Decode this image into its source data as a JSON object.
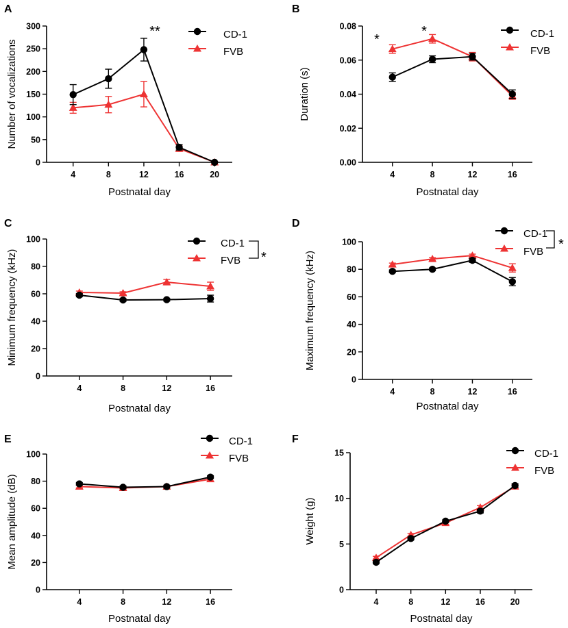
{
  "colors": {
    "cd1": "#000000",
    "fvb": "#ee3333"
  },
  "chart_data": [
    {
      "panel": "A",
      "type": "line",
      "xlabel": "Postnatal day",
      "ylabel": "Number of vocalizations",
      "x": [
        4,
        8,
        12,
        16,
        20
      ],
      "xlim": [
        1,
        22
      ],
      "ylim": [
        0,
        300
      ],
      "yticks": [
        0,
        50,
        100,
        150,
        200,
        250,
        300
      ],
      "ytick_labels": [
        "0",
        "50",
        "100",
        "150",
        "200",
        "250",
        "300"
      ],
      "series": [
        {
          "name": "CD-1",
          "values": [
            149,
            184,
            248,
            33,
            0
          ],
          "errors": [
            22,
            21,
            25,
            6,
            1
          ]
        },
        {
          "name": "FVB",
          "values": [
            120,
            127,
            150,
            30,
            0
          ],
          "errors": [
            12,
            18,
            28,
            6,
            1
          ]
        }
      ],
      "annotations": [
        {
          "text": "**",
          "x": 12
        }
      ]
    },
    {
      "panel": "B",
      "type": "line",
      "xlabel": "Postnatal day",
      "ylabel": "Duration (s)",
      "x": [
        4,
        8,
        12,
        16
      ],
      "xlim": [
        1,
        18
      ],
      "ylim": [
        0,
        0.08
      ],
      "yticks": [
        0,
        0.02,
        0.04,
        0.06,
        0.08
      ],
      "ytick_labels": [
        "0.00",
        "0.02",
        "0.04",
        "0.06",
        "0.08"
      ],
      "series": [
        {
          "name": "CD-1",
          "values": [
            0.05,
            0.0605,
            0.062,
            0.04
          ],
          "errors": [
            0.0025,
            0.002,
            0.002,
            0.0025
          ]
        },
        {
          "name": "FVB",
          "values": [
            0.0665,
            0.0725,
            0.062,
            0.039
          ],
          "errors": [
            0.0025,
            0.0025,
            0.0025,
            0.002
          ]
        }
      ],
      "annotations": [
        {
          "text": "*",
          "x": 4
        },
        {
          "text": "*",
          "x": 8
        }
      ]
    },
    {
      "panel": "C",
      "type": "line",
      "xlabel": "Postnatal day",
      "ylabel": "Minimum frequency (kHz)",
      "x": [
        4,
        8,
        12,
        16
      ],
      "xlim": [
        1,
        18
      ],
      "ylim": [
        0,
        100
      ],
      "yticks": [
        0,
        20,
        40,
        60,
        80,
        100
      ],
      "ytick_labels": [
        "0",
        "20",
        "40",
        "60",
        "80",
        "100"
      ],
      "series": [
        {
          "name": "CD-1",
          "values": [
            59,
            55.5,
            55.7,
            56.5
          ],
          "errors": [
            1.2,
            1,
            1,
            2.5
          ]
        },
        {
          "name": "FVB",
          "values": [
            61,
            60.5,
            68.5,
            65.5
          ],
          "errors": [
            1,
            1,
            2,
            3
          ]
        }
      ],
      "annotations": [
        {
          "text": "*",
          "x": null
        }
      ]
    },
    {
      "panel": "D",
      "type": "line",
      "xlabel": "Postnatal day",
      "ylabel": "Maximum frequency (kHz)",
      "x": [
        4,
        8,
        12,
        16
      ],
      "xlim": [
        1,
        18
      ],
      "ylim": [
        0,
        100
      ],
      "yticks": [
        0,
        20,
        40,
        60,
        80,
        100
      ],
      "ytick_labels": [
        "0",
        "20",
        "40",
        "60",
        "80",
        "100"
      ],
      "series": [
        {
          "name": "CD-1",
          "values": [
            78.5,
            80,
            86.5,
            71
          ],
          "errors": [
            1,
            1,
            1.5,
            3
          ]
        },
        {
          "name": "FVB",
          "values": [
            83.5,
            87.5,
            90,
            81
          ],
          "errors": [
            1,
            1,
            1,
            3
          ]
        }
      ],
      "annotations": [
        {
          "text": "*",
          "x": null
        }
      ]
    },
    {
      "panel": "E",
      "type": "line",
      "xlabel": "Postnatal day",
      "ylabel": "Mean amplitude (dB)",
      "x": [
        4,
        8,
        12,
        16
      ],
      "xlim": [
        1,
        18
      ],
      "ylim": [
        0,
        100
      ],
      "yticks": [
        0,
        20,
        40,
        60,
        80,
        100
      ],
      "ytick_labels": [
        "0",
        "20",
        "40",
        "60",
        "80",
        "100"
      ],
      "series": [
        {
          "name": "CD-1",
          "values": [
            78,
            75.5,
            76,
            83
          ],
          "errors": [
            1,
            1,
            1,
            1
          ]
        },
        {
          "name": "FVB",
          "values": [
            76,
            75,
            76,
            81.5
          ],
          "errors": [
            1,
            1,
            1,
            1.5
          ]
        }
      ],
      "annotations": []
    },
    {
      "panel": "F",
      "type": "line",
      "xlabel": "Postnatal day",
      "ylabel": "Weight (g)",
      "x": [
        4,
        8,
        12,
        16,
        20
      ],
      "xlim": [
        1,
        22
      ],
      "ylim": [
        0,
        15
      ],
      "yticks": [
        0,
        5,
        10,
        15
      ],
      "ytick_labels": [
        "0",
        "5",
        "10",
        "15"
      ],
      "series": [
        {
          "name": "CD-1",
          "values": [
            3.0,
            5.6,
            7.5,
            8.6,
            11.4
          ],
          "errors": [
            0.15,
            0.15,
            0.15,
            0.2,
            0.2
          ]
        },
        {
          "name": "FVB",
          "values": [
            3.5,
            6.0,
            7.3,
            9.0,
            11.3
          ],
          "errors": [
            0.15,
            0.15,
            0.15,
            0.2,
            0.2
          ]
        }
      ],
      "annotations": []
    }
  ]
}
